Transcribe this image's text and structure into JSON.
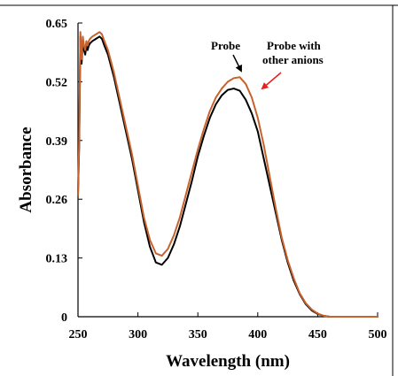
{
  "chart_data": {
    "type": "line",
    "xlabel": "Wavelength (nm)",
    "ylabel": "Absorbance",
    "xlim": [
      250,
      500
    ],
    "ylim": [
      0,
      0.65
    ],
    "x_ticks": [
      "250",
      "300",
      "350",
      "400",
      "450",
      "500"
    ],
    "y_ticks": [
      "0",
      "0.13",
      "0.26",
      "0.39",
      "0.52",
      "0.65"
    ],
    "grid": false,
    "annotations": [
      {
        "lines": [
          "Probe"
        ],
        "arrow_color": "#000000"
      },
      {
        "lines": [
          "Probe with",
          "other anions"
        ],
        "arrow_color": "#e8201c"
      }
    ],
    "series": [
      {
        "name": "Probe",
        "color": "#000000",
        "x": [
          250,
          251,
          252,
          253,
          254,
          255,
          256,
          257,
          258,
          259,
          260,
          262,
          265,
          268,
          270,
          272,
          275,
          280,
          285,
          290,
          295,
          300,
          305,
          310,
          315,
          320,
          325,
          330,
          335,
          340,
          345,
          350,
          355,
          360,
          365,
          370,
          375,
          380,
          385,
          390,
          395,
          400,
          405,
          410,
          415,
          420,
          425,
          430,
          435,
          440,
          445,
          450,
          455,
          460,
          465,
          470,
          475,
          480,
          485,
          490,
          500
        ],
        "y": [
          0.27,
          0.38,
          0.62,
          0.56,
          0.61,
          0.59,
          0.58,
          0.6,
          0.59,
          0.6,
          0.605,
          0.61,
          0.615,
          0.62,
          0.615,
          0.6,
          0.58,
          0.53,
          0.47,
          0.41,
          0.35,
          0.28,
          0.21,
          0.155,
          0.12,
          0.115,
          0.13,
          0.16,
          0.2,
          0.25,
          0.3,
          0.355,
          0.4,
          0.44,
          0.47,
          0.49,
          0.502,
          0.505,
          0.5,
          0.48,
          0.45,
          0.41,
          0.35,
          0.29,
          0.23,
          0.17,
          0.12,
          0.08,
          0.05,
          0.028,
          0.014,
          0.006,
          0.002,
          0.0,
          0.0,
          0.0,
          0.0,
          0.0,
          0.0,
          0.0,
          0.0
        ]
      },
      {
        "name": "Probe with other anions",
        "color": "#c8622c",
        "x": [
          250,
          251,
          252,
          253,
          254,
          255,
          256,
          257,
          258,
          259,
          260,
          262,
          265,
          268,
          270,
          272,
          275,
          280,
          285,
          290,
          295,
          300,
          305,
          310,
          315,
          320,
          325,
          330,
          335,
          340,
          345,
          350,
          355,
          360,
          365,
          370,
          375,
          380,
          385,
          390,
          395,
          400,
          405,
          410,
          415,
          420,
          425,
          430,
          435,
          440,
          445,
          450,
          455,
          460,
          465,
          470,
          475,
          480,
          485,
          490,
          500
        ],
        "y": [
          0.27,
          0.39,
          0.63,
          0.57,
          0.62,
          0.6,
          0.59,
          0.61,
          0.6,
          0.61,
          0.615,
          0.62,
          0.625,
          0.63,
          0.625,
          0.61,
          0.59,
          0.54,
          0.48,
          0.42,
          0.36,
          0.29,
          0.22,
          0.17,
          0.14,
          0.135,
          0.15,
          0.18,
          0.22,
          0.27,
          0.32,
          0.37,
          0.415,
          0.455,
          0.485,
          0.505,
          0.52,
          0.528,
          0.53,
          0.515,
          0.485,
          0.44,
          0.38,
          0.31,
          0.24,
          0.175,
          0.125,
          0.085,
          0.052,
          0.03,
          0.016,
          0.007,
          0.002,
          0.0,
          0.0,
          0.0,
          0.0,
          0.0,
          0.0,
          0.0,
          0.0
        ]
      }
    ]
  }
}
